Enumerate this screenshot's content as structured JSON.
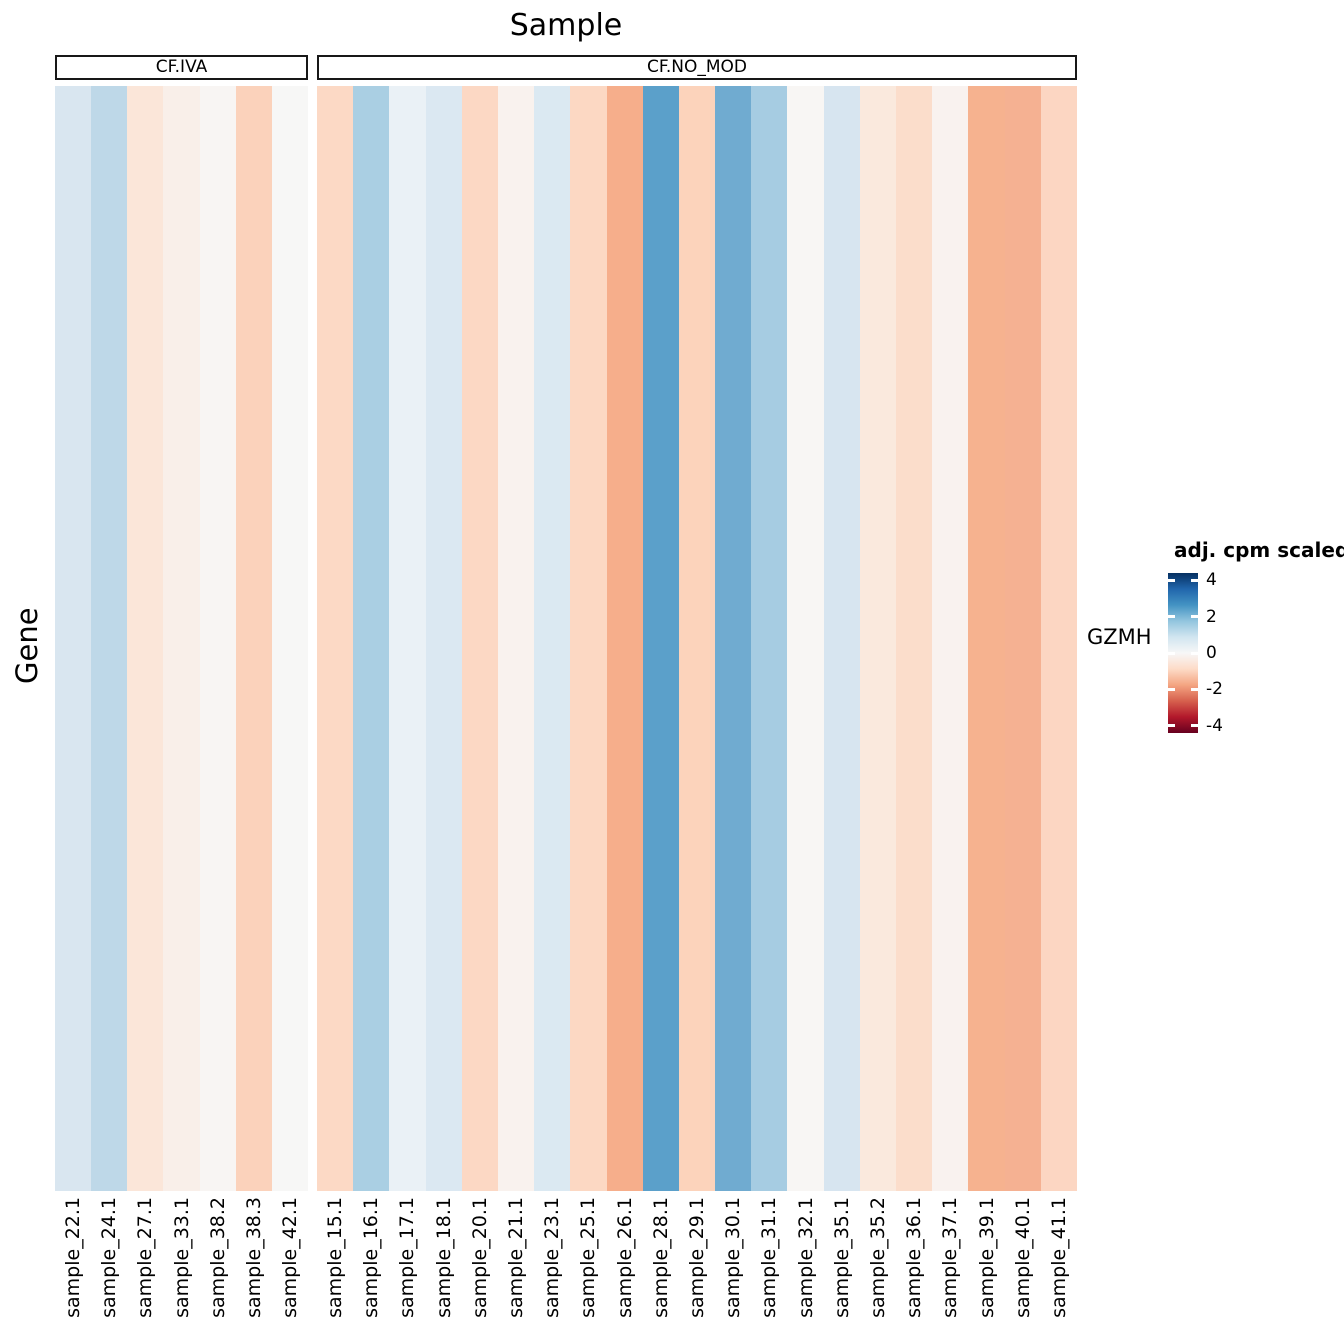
{
  "title": "Sample",
  "y_axis_label": "Gene",
  "row_label": "GZMH",
  "legend": {
    "title": "adj. cpm scaled",
    "ticks": [
      4,
      2,
      0,
      -2,
      -4
    ],
    "domain_min": -4.4,
    "domain_max": 4.4,
    "gradient_stops_top_to_bottom": [
      "#053061",
      "#2166ac",
      "#4393c3",
      "#92c5de",
      "#d1e5f0",
      "#f7f7f7",
      "#fddbc7",
      "#f4a582",
      "#d6604d",
      "#b2182b",
      "#67001f"
    ]
  },
  "chart_data": {
    "type": "heatmap",
    "title": "Sample",
    "xlabel": "Sample",
    "ylabel": "Gene",
    "rows": [
      "GZMH"
    ],
    "colorscale": {
      "name": "RdBu (blue = high)",
      "min": -4.4,
      "max": 4.4,
      "center_color": "#f7f7f7"
    },
    "facets": [
      {
        "label": "CF.IVA",
        "columns": [
          {
            "sample": "sample_22.1",
            "value": 0.8,
            "color": "#d9e6f0"
          },
          {
            "sample": "sample_24.1",
            "value": 1.2,
            "color": "#bed8e8"
          },
          {
            "sample": "sample_27.1",
            "value": -0.5,
            "color": "#fbe6d9"
          },
          {
            "sample": "sample_33.1",
            "value": -0.25,
            "color": "#f9efe9"
          },
          {
            "sample": "sample_38.2",
            "value": -0.1,
            "color": "#f8f5f3"
          },
          {
            "sample": "sample_38.3",
            "value": -1.05,
            "color": "#fbd2bb"
          },
          {
            "sample": "sample_42.1",
            "value": 0.0,
            "color": "#f7f7f6"
          }
        ]
      },
      {
        "label": "CF.NO_MOD",
        "columns": [
          {
            "sample": "sample_15.1",
            "value": -0.85,
            "color": "#fcd9c5"
          },
          {
            "sample": "sample_16.1",
            "value": 1.5,
            "color": "#aacfe3"
          },
          {
            "sample": "sample_17.1",
            "value": 0.4,
            "color": "#eaf1f6"
          },
          {
            "sample": "sample_18.1",
            "value": 0.8,
            "color": "#dbe8f2"
          },
          {
            "sample": "sample_20.1",
            "value": -0.9,
            "color": "#fcd8c4"
          },
          {
            "sample": "sample_21.1",
            "value": -0.15,
            "color": "#f9f2ee"
          },
          {
            "sample": "sample_23.1",
            "value": 0.75,
            "color": "#dbe9f2"
          },
          {
            "sample": "sample_25.1",
            "value": -0.9,
            "color": "#fcd8c3"
          },
          {
            "sample": "sample_26.1",
            "value": -1.65,
            "color": "#f6ae8b"
          },
          {
            "sample": "sample_28.1",
            "value": 2.4,
            "color": "#5ba0ca"
          },
          {
            "sample": "sample_29.1",
            "value": -1.0,
            "color": "#fcd3bb"
          },
          {
            "sample": "sample_30.1",
            "value": 2.2,
            "color": "#70abd0"
          },
          {
            "sample": "sample_31.1",
            "value": 1.55,
            "color": "#a6cce2"
          },
          {
            "sample": "sample_32.1",
            "value": -0.05,
            "color": "#f8f6f4"
          },
          {
            "sample": "sample_35.1",
            "value": 0.85,
            "color": "#d7e5f0"
          },
          {
            "sample": "sample_35.2",
            "value": -0.4,
            "color": "#fae9dd"
          },
          {
            "sample": "sample_36.1",
            "value": -0.75,
            "color": "#fbddcb"
          },
          {
            "sample": "sample_37.1",
            "value": -0.15,
            "color": "#f9f2ef"
          },
          {
            "sample": "sample_39.1",
            "value": -1.6,
            "color": "#f6b28f"
          },
          {
            "sample": "sample_40.1",
            "value": -1.6,
            "color": "#f5b192"
          },
          {
            "sample": "sample_41.1",
            "value": -0.9,
            "color": "#fcd6c2"
          }
        ]
      }
    ]
  }
}
